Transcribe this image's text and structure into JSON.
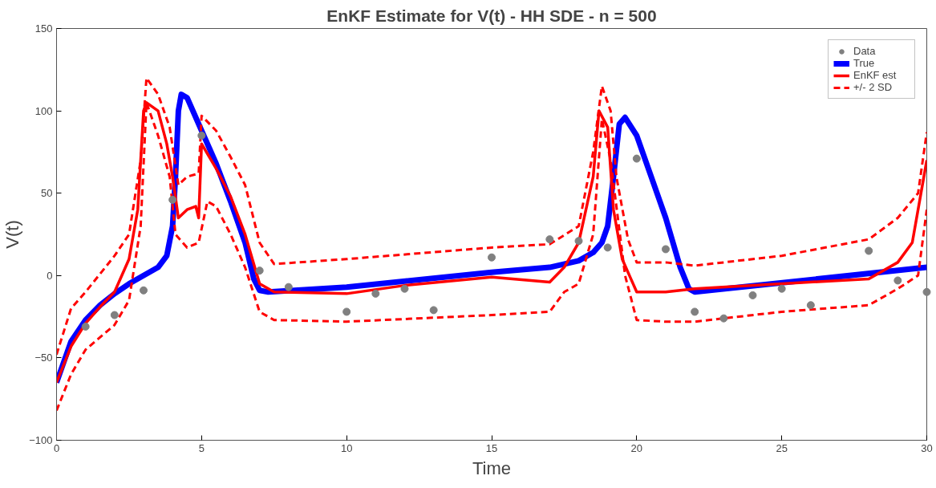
{
  "chart_data": {
    "type": "line",
    "title": "EnKF Estimate for V(t) - HH SDE - n = 500",
    "xlabel": "Time",
    "ylabel": "V(t)",
    "xlim": [
      0,
      30
    ],
    "xticks": [
      0,
      5,
      10,
      15,
      20,
      25,
      30
    ],
    "ylim": [
      -100,
      150
    ],
    "yticks": [
      -100,
      -50,
      0,
      50,
      100,
      150
    ],
    "grid": false,
    "legend": "top right",
    "series": [
      {
        "name": "Data",
        "type": "scatter",
        "marker": "circle",
        "color": "#808080",
        "x": [
          1,
          2,
          3,
          4,
          5,
          7,
          8,
          10,
          11,
          12,
          13,
          15,
          17,
          18,
          19,
          20,
          21,
          22,
          23,
          24,
          25,
          26,
          28,
          29,
          30
        ],
        "values": [
          -31,
          -24,
          -9,
          46,
          85,
          3,
          -7,
          -22,
          -11,
          -8,
          -21,
          11,
          22,
          21,
          17,
          71,
          16,
          -22,
          -26,
          -12,
          -8,
          -18,
          15,
          -3,
          -10
        ]
      },
      {
        "name": "True",
        "line_style": "solid",
        "color": "#0000ff",
        "x": [
          0,
          0.5,
          1,
          1.5,
          2,
          2.5,
          3,
          3.5,
          3.8,
          4.0,
          4.1,
          4.2,
          4.3,
          4.5,
          5,
          5.5,
          6,
          6.5,
          6.8,
          7.0,
          7.3,
          10,
          15,
          17,
          18,
          18.5,
          18.8,
          19.0,
          19.2,
          19.4,
          19.6,
          20,
          20.5,
          21,
          21.5,
          21.8,
          22,
          30
        ],
        "values": [
          -65,
          -40,
          -27,
          -18,
          -11,
          -5,
          0,
          5,
          12,
          30,
          60,
          100,
          110,
          108,
          88,
          68,
          45,
          20,
          -2,
          -9,
          -10,
          -7,
          2,
          5,
          9,
          14,
          20,
          30,
          60,
          92,
          96,
          85,
          60,
          35,
          5,
          -8,
          -10,
          5
        ]
      },
      {
        "name": "EnKF est",
        "line_style": "solid",
        "color": "#ff0000",
        "x": [
          0,
          0.5,
          1,
          1.5,
          2,
          2.5,
          2.8,
          3.0,
          3.1,
          3.5,
          3.8,
          4.0,
          4.2,
          4.5,
          4.8,
          4.9,
          5.0,
          5.5,
          6,
          6.5,
          7,
          7.5,
          10,
          12,
          15,
          17,
          17.5,
          18,
          18.5,
          18.7,
          19,
          19.2,
          19.5,
          19.8,
          20,
          21,
          22,
          25,
          28,
          29,
          29.5,
          30
        ],
        "values": [
          -65,
          -43,
          -29,
          -19,
          -10,
          10,
          40,
          100,
          105,
          100,
          80,
          60,
          35,
          40,
          42,
          35,
          80,
          65,
          48,
          25,
          -5,
          -10,
          -11,
          -6,
          -1,
          -4,
          5,
          20,
          60,
          100,
          90,
          40,
          10,
          -2,
          -10,
          -10,
          -8,
          -5,
          -2,
          8,
          20,
          70
        ]
      },
      {
        "name": "+/- 2 SD",
        "type": "line",
        "line_style": "dashed",
        "color": "#ff0000",
        "x": [
          0,
          0.5,
          1,
          2,
          2.5,
          2.9,
          3.1,
          3.5,
          3.9,
          4.2,
          4.5,
          4.9,
          5.0,
          5.5,
          6,
          6.5,
          7,
          7.5,
          10,
          15,
          17,
          18,
          18.5,
          18.8,
          19.1,
          19.3,
          19.7,
          20.0,
          21,
          22,
          25,
          28,
          29,
          29.7,
          30
        ],
        "values": [
          -48,
          -20,
          -10,
          12,
          25,
          70,
          120,
          110,
          90,
          55,
          60,
          62,
          97,
          88,
          72,
          55,
          20,
          7,
          10,
          17,
          19,
          30,
          75,
          115,
          100,
          60,
          22,
          8,
          8,
          6,
          12,
          22,
          35,
          50,
          87
        ]
      },
      {
        "line_style": "dashed",
        "color": "#ff0000",
        "x": [
          0,
          0.5,
          1,
          2,
          2.5,
          2.9,
          3.1,
          3.5,
          3.9,
          4.1,
          4.5,
          4.9,
          5.2,
          5.5,
          6,
          6.5,
          7,
          7.5,
          10,
          15,
          17,
          17.5,
          18,
          18.5,
          18.8,
          19.1,
          19.6,
          20,
          21,
          22,
          25,
          28,
          29,
          29.7,
          30
        ],
        "values": [
          -82,
          -60,
          -45,
          -30,
          -15,
          30,
          105,
          85,
          60,
          25,
          17,
          20,
          45,
          42,
          25,
          5,
          -22,
          -27,
          -28,
          -24,
          -22,
          -10,
          -5,
          25,
          95,
          70,
          0,
          -27,
          -28,
          -28,
          -22,
          -18,
          -8,
          0,
          40
        ]
      }
    ]
  }
}
